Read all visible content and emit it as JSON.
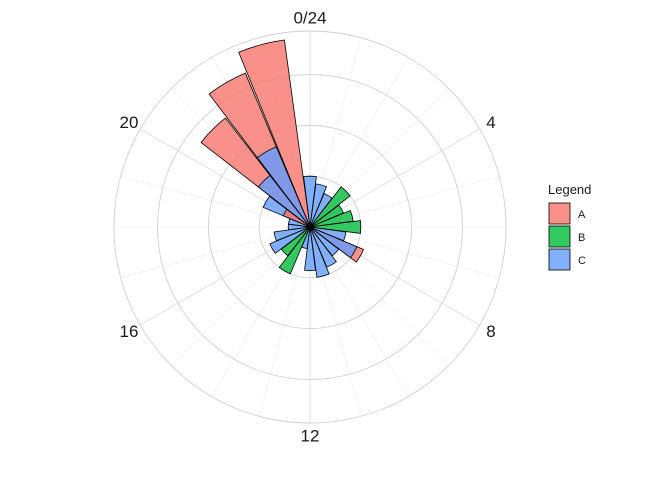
{
  "chart_data": {
    "type": "bar",
    "coord": "polar",
    "theta_axis": {
      "range": [
        0,
        24
      ],
      "tick_labels": [
        {
          "value": 0,
          "label": "0/24"
        },
        {
          "value": 4,
          "label": "4"
        },
        {
          "value": 8,
          "label": "8"
        },
        {
          "value": 12,
          "label": "12"
        },
        {
          "value": 16,
          "label": "16"
        },
        {
          "value": 20,
          "label": "20"
        }
      ]
    },
    "radial_axis": {
      "range": [
        0,
        27
      ],
      "gridlines": [
        7,
        14,
        21,
        27
      ]
    },
    "grid": true,
    "stacked": false,
    "legend": {
      "title": "Legend",
      "placement": "right",
      "entries": [
        {
          "name": "A",
          "color": "#F8766D"
        },
        {
          "name": "B",
          "color": "#00BA38"
        },
        {
          "name": "C",
          "color": "#619CFF"
        }
      ]
    },
    "categories": [
      "0",
      "1",
      "2",
      "3",
      "4",
      "5",
      "6",
      "7",
      "8",
      "9",
      "10",
      "11",
      "12",
      "13",
      "14",
      "15",
      "16",
      "17",
      "18",
      "19",
      "20",
      "21",
      "22",
      "23"
    ],
    "series": [
      {
        "name": "A",
        "values": [
          0,
          0,
          0,
          0,
          0,
          0,
          0,
          0,
          8,
          0,
          0,
          0,
          0,
          0,
          0,
          0,
          0,
          0,
          0,
          0,
          4,
          19,
          23,
          26
        ]
      },
      {
        "name": "B",
        "values": [
          0,
          0,
          0,
          7,
          5,
          6,
          7,
          0,
          0,
          0,
          0,
          0,
          0,
          0,
          7,
          5,
          0,
          0,
          0,
          0,
          0,
          0,
          0,
          0
        ]
      },
      {
        "name": "C",
        "values": [
          7,
          6,
          5,
          0,
          0,
          0,
          0,
          5,
          7,
          5,
          6,
          7,
          6,
          3,
          0,
          0,
          6,
          5,
          3,
          3,
          7,
          9,
          12,
          0
        ]
      }
    ]
  }
}
